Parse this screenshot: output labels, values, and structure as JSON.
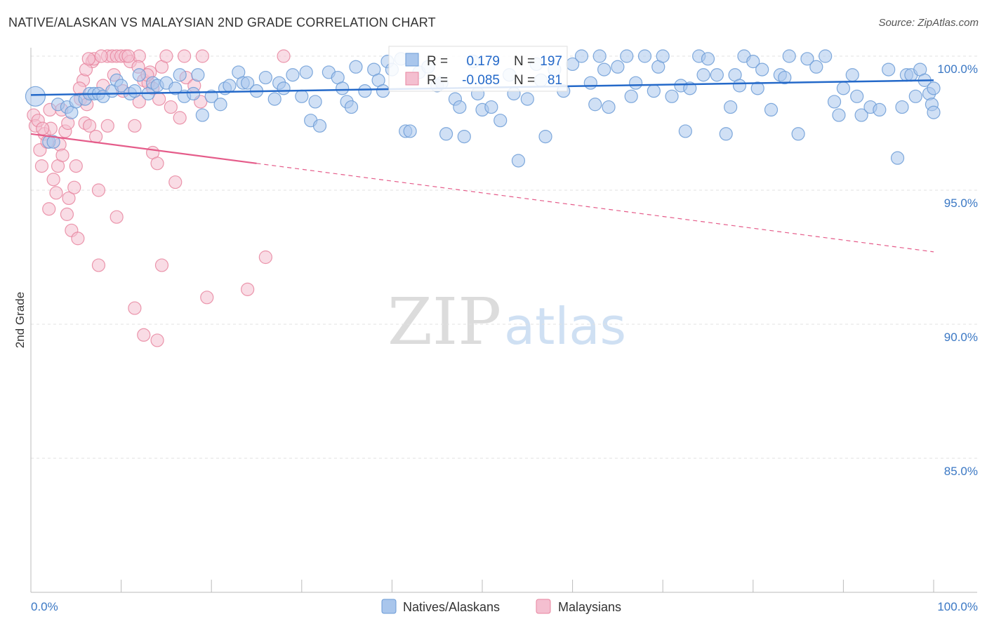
{
  "title": "NATIVE/ALASKAN VS MALAYSIAN 2ND GRADE CORRELATION CHART",
  "source": "Source: ZipAtlas.com",
  "watermark": {
    "zip": "ZIP",
    "atlas": "atlas"
  },
  "colors": {
    "blue_fill": "#a9c6ec",
    "blue_stroke": "#6b9bd6",
    "blue_line": "#2469c9",
    "pink_fill": "#f4bfd0",
    "pink_stroke": "#e8859f",
    "pink_line": "#e55c8a",
    "grid": "#e2e2e2",
    "tick_text": "#3b78c4"
  },
  "legend_top": {
    "rows": [
      {
        "r_label": "R =",
        "r_value": "0.179",
        "n_label": "N =",
        "n_value": "197"
      },
      {
        "r_label": "R =",
        "r_value": "-0.085",
        "n_label": "N =",
        "n_value": "81"
      }
    ]
  },
  "legend_bottom": [
    "Natives/Alaskans",
    "Malaysians"
  ],
  "chart_data": {
    "type": "scatter",
    "title": "NATIVE/ALASKAN VS MALAYSIAN 2ND GRADE CORRELATION CHART",
    "xlabel": "",
    "ylabel": "2nd Grade",
    "xlim": [
      0,
      100
    ],
    "ylim": [
      80.3,
      100.8
    ],
    "x_tick_labels": [
      "0.0%",
      "100.0%"
    ],
    "y_ticks": [
      85,
      90,
      95,
      100
    ],
    "y_tick_labels": [
      "85.0%",
      "90.0%",
      "95.0%",
      "100.0%"
    ],
    "series": [
      {
        "name": "Natives/Alaskans",
        "r": 0.179,
        "n": 197,
        "trend": {
          "x": [
            0,
            100
          ],
          "y": [
            98.55,
            99.1
          ],
          "dashed_from": null
        },
        "points": [
          [
            0.5,
            98.5
          ],
          [
            2,
            96.8
          ],
          [
            2.5,
            96.8
          ],
          [
            3,
            98.2
          ],
          [
            4,
            98.1
          ],
          [
            4.5,
            97.9
          ],
          [
            5,
            98.3
          ],
          [
            6,
            98.4
          ],
          [
            6.5,
            98.6
          ],
          [
            7,
            98.6
          ],
          [
            7.5,
            98.6
          ],
          [
            8,
            98.5
          ],
          [
            9,
            98.7
          ],
          [
            9.5,
            99.1
          ],
          [
            10,
            98.9
          ],
          [
            11,
            98.6
          ],
          [
            11.5,
            98.7
          ],
          [
            12,
            99.3
          ],
          [
            13,
            98.6
          ],
          [
            13.5,
            99.0
          ],
          [
            14,
            98.9
          ],
          [
            15,
            99.0
          ],
          [
            16,
            98.8
          ],
          [
            16.5,
            99.3
          ],
          [
            17,
            98.5
          ],
          [
            18,
            98.6
          ],
          [
            18.5,
            99.3
          ],
          [
            19,
            97.8
          ],
          [
            20,
            98.5
          ],
          [
            21,
            98.2
          ],
          [
            21.5,
            98.8
          ],
          [
            22,
            98.9
          ],
          [
            23,
            99.4
          ],
          [
            23.5,
            99.0
          ],
          [
            24,
            99.0
          ],
          [
            25,
            98.7
          ],
          [
            26,
            99.2
          ],
          [
            27,
            98.4
          ],
          [
            27.5,
            99.0
          ],
          [
            28,
            98.8
          ],
          [
            29,
            99.3
          ],
          [
            30,
            98.5
          ],
          [
            30.5,
            99.4
          ],
          [
            31,
            97.6
          ],
          [
            31.5,
            98.3
          ],
          [
            32,
            97.4
          ],
          [
            33,
            99.4
          ],
          [
            34,
            99.2
          ],
          [
            34.5,
            98.8
          ],
          [
            35,
            98.3
          ],
          [
            35.5,
            98.1
          ],
          [
            36,
            99.6
          ],
          [
            37,
            98.7
          ],
          [
            38,
            99.5
          ],
          [
            38.5,
            99.1
          ],
          [
            39,
            98.7
          ],
          [
            39.5,
            99.8
          ],
          [
            40,
            99.5
          ],
          [
            41,
            99.9
          ],
          [
            41.5,
            97.2
          ],
          [
            42,
            97.2
          ],
          [
            43,
            99.4
          ],
          [
            44,
            99.6
          ],
          [
            45,
            98.9
          ],
          [
            45.5,
            99.0
          ],
          [
            46,
            97.1
          ],
          [
            47,
            98.4
          ],
          [
            47.5,
            98.1
          ],
          [
            48,
            97.0
          ],
          [
            49,
            99.8
          ],
          [
            49.5,
            98.6
          ],
          [
            50,
            98.0
          ],
          [
            51,
            98.1
          ],
          [
            52,
            97.6
          ],
          [
            53,
            99.3
          ],
          [
            53.5,
            98.6
          ],
          [
            54,
            96.1
          ],
          [
            55,
            98.4
          ],
          [
            56,
            99.7
          ],
          [
            56.5,
            99.1
          ],
          [
            57,
            97.0
          ],
          [
            58,
            99.5
          ],
          [
            59,
            98.7
          ],
          [
            60,
            99.7
          ],
          [
            61,
            100.0
          ],
          [
            62,
            99.0
          ],
          [
            62.5,
            98.2
          ],
          [
            63,
            100.0
          ],
          [
            63.5,
            99.5
          ],
          [
            64,
            98.1
          ],
          [
            65,
            99.6
          ],
          [
            66,
            100.0
          ],
          [
            66.5,
            98.5
          ],
          [
            67,
            99.0
          ],
          [
            68,
            100.0
          ],
          [
            69,
            98.7
          ],
          [
            69.5,
            99.6
          ],
          [
            70,
            100.0
          ],
          [
            71,
            98.5
          ],
          [
            72,
            98.9
          ],
          [
            72.5,
            97.2
          ],
          [
            73,
            98.8
          ],
          [
            74,
            100.0
          ],
          [
            74.5,
            99.3
          ],
          [
            75,
            99.9
          ],
          [
            76,
            99.3
          ],
          [
            77,
            97.1
          ],
          [
            77.5,
            98.1
          ],
          [
            78,
            99.3
          ],
          [
            78.5,
            98.9
          ],
          [
            79,
            100.0
          ],
          [
            80,
            99.8
          ],
          [
            80.5,
            98.8
          ],
          [
            81,
            99.5
          ],
          [
            82,
            98.0
          ],
          [
            83,
            99.3
          ],
          [
            83.5,
            99.2
          ],
          [
            84,
            100.0
          ],
          [
            85,
            97.1
          ],
          [
            86,
            99.9
          ],
          [
            87,
            99.6
          ],
          [
            88,
            100.0
          ],
          [
            89,
            98.3
          ],
          [
            89.5,
            97.8
          ],
          [
            90,
            98.8
          ],
          [
            91,
            99.3
          ],
          [
            91.5,
            98.5
          ],
          [
            92,
            97.8
          ],
          [
            93,
            98.1
          ],
          [
            94,
            98.0
          ],
          [
            95,
            99.5
          ],
          [
            96,
            96.2
          ],
          [
            96.5,
            98.1
          ],
          [
            97,
            99.3
          ],
          [
            97.5,
            99.3
          ],
          [
            98,
            98.5
          ],
          [
            98.5,
            99.5
          ],
          [
            99,
            99.1
          ],
          [
            99.5,
            98.6
          ],
          [
            99.8,
            98.2
          ],
          [
            100,
            98.8
          ],
          [
            100,
            97.9
          ]
        ]
      },
      {
        "name": "Malaysians",
        "r": -0.085,
        "n": 81,
        "trend": {
          "x": [
            0,
            100
          ],
          "y": [
            97.1,
            92.7
          ],
          "dashed_from": 25
        },
        "points": [
          [
            0.3,
            97.8
          ],
          [
            0.5,
            97.4
          ],
          [
            0.8,
            97.6
          ],
          [
            1,
            96.5
          ],
          [
            1.2,
            95.9
          ],
          [
            1.5,
            97.1
          ],
          [
            1.8,
            96.8
          ],
          [
            2,
            94.3
          ],
          [
            2.2,
            97.3
          ],
          [
            2.5,
            95.4
          ],
          [
            2.8,
            94.9
          ],
          [
            3,
            95.9
          ],
          [
            3.2,
            96.7
          ],
          [
            3.5,
            96.3
          ],
          [
            3.8,
            97.2
          ],
          [
            4,
            94.1
          ],
          [
            4.2,
            94.7
          ],
          [
            4.5,
            93.5
          ],
          [
            4.8,
            95.1
          ],
          [
            5,
            95.9
          ],
          [
            5.2,
            93.2
          ],
          [
            5.5,
            98.4
          ],
          [
            5.8,
            99.1
          ],
          [
            6,
            97.5
          ],
          [
            6.2,
            98.2
          ],
          [
            6.5,
            97.4
          ],
          [
            6.8,
            99.8
          ],
          [
            7,
            99.9
          ],
          [
            7.2,
            97.0
          ],
          [
            7.5,
            95.0
          ],
          [
            8,
            98.9
          ],
          [
            8.5,
            100.0
          ],
          [
            9,
            100.0
          ],
          [
            9.5,
            100.0
          ],
          [
            10,
            100.0
          ],
          [
            10.5,
            100.0
          ],
          [
            11,
            99.8
          ],
          [
            11.5,
            97.4
          ],
          [
            12,
            98.3
          ],
          [
            12.5,
            99.1
          ],
          [
            13,
            99.0
          ],
          [
            13.5,
            96.4
          ],
          [
            14,
            96.0
          ],
          [
            14.5,
            99.6
          ],
          [
            15,
            100.0
          ],
          [
            16,
            95.3
          ],
          [
            17,
            100.0
          ],
          [
            19,
            100.0
          ],
          [
            7.5,
            92.2
          ],
          [
            11.5,
            90.6
          ],
          [
            9.5,
            94.0
          ],
          [
            14.5,
            92.2
          ],
          [
            19.5,
            91.0
          ],
          [
            24,
            91.3
          ],
          [
            26,
            92.5
          ],
          [
            12.5,
            89.6
          ],
          [
            14,
            89.4
          ],
          [
            8.5,
            97.4
          ],
          [
            10.2,
            98.7
          ],
          [
            18.8,
            98.3
          ],
          [
            13.2,
            99.4
          ],
          [
            12,
            100.0
          ],
          [
            15.5,
            98.1
          ],
          [
            28,
            100.0
          ],
          [
            1.3,
            97.3
          ],
          [
            2.1,
            98.0
          ],
          [
            3.4,
            98.0
          ],
          [
            4.1,
            97.5
          ],
          [
            5.4,
            98.8
          ],
          [
            6.1,
            99.5
          ],
          [
            6.4,
            99.9
          ],
          [
            7.8,
            100.0
          ],
          [
            9.2,
            99.3
          ],
          [
            10.8,
            100.0
          ],
          [
            11.9,
            99.6
          ],
          [
            12.9,
            99.3
          ],
          [
            13.5,
            98.8
          ],
          [
            14.2,
            98.4
          ],
          [
            16.5,
            97.7
          ],
          [
            17.2,
            99.2
          ],
          [
            18.1,
            98.9
          ]
        ]
      }
    ]
  }
}
